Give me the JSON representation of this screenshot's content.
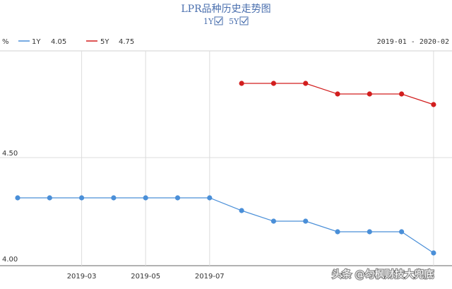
{
  "header": {
    "title": "LPR品种历史走势图",
    "toggles": [
      {
        "label": "1Y",
        "checked": true
      },
      {
        "label": "5Y",
        "checked": true
      }
    ],
    "unit": "%",
    "date_range": "2019-01 - 2020-02"
  },
  "legend": [
    {
      "name": "1Y",
      "value": "4.05",
      "color": "#4a8fd8"
    },
    {
      "name": "5Y",
      "value": "4.75",
      "color": "#d21e1e"
    }
  ],
  "watermark": "头条 @匀枫财技大兜底",
  "chart_data": {
    "type": "line",
    "x": [
      "2019-01",
      "2019-02",
      "2019-03",
      "2019-04",
      "2019-05",
      "2019-06",
      "2019-07",
      "2019-08",
      "2019-09",
      "2019-10",
      "2019-11",
      "2019-12",
      "2020-01",
      "2020-02"
    ],
    "x_tick_labels": [
      "2019-03",
      "2019-05",
      "2019-07"
    ],
    "series": [
      {
        "name": "1Y",
        "color": "#4a8fd8",
        "values": [
          4.31,
          4.31,
          4.31,
          4.31,
          4.31,
          4.31,
          4.31,
          4.25,
          4.2,
          4.2,
          4.15,
          4.15,
          4.15,
          4.05
        ]
      },
      {
        "name": "5Y",
        "color": "#d21e1e",
        "values": [
          null,
          null,
          null,
          null,
          null,
          null,
          null,
          4.85,
          4.85,
          4.85,
          4.8,
          4.8,
          4.8,
          4.75
        ]
      }
    ],
    "y_ticks": [
      4.0,
      4.5
    ],
    "y_tick_labels": [
      "4.00",
      "4.50"
    ],
    "ylim": [
      4.0,
      5.0
    ],
    "grid": true
  }
}
